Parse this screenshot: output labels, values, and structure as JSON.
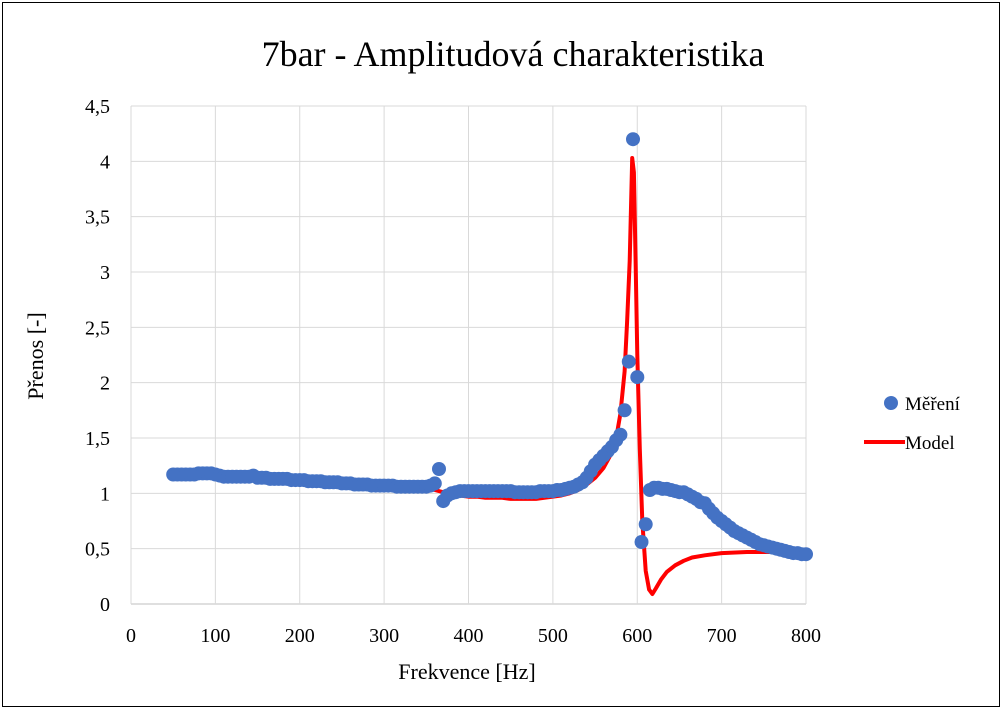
{
  "chart_data": {
    "type": "scatter",
    "title": "7bar - Amplitudová charakteristika",
    "xlabel": "Frekvence [Hz]",
    "ylabel": "Přenos [-]",
    "xlim": [
      0,
      800
    ],
    "ylim": [
      0,
      4.5
    ],
    "x_ticks": [
      0,
      100,
      200,
      300,
      400,
      500,
      600,
      700,
      800
    ],
    "x_tick_labels": [
      "0",
      "100",
      "200",
      "300",
      "400",
      "500",
      "600",
      "700",
      "800"
    ],
    "y_ticks": [
      0,
      0.5,
      1,
      1.5,
      2,
      2.5,
      3,
      3.5,
      4,
      4.5
    ],
    "y_tick_labels": [
      "0",
      "0,5",
      "1",
      "1,5",
      "2",
      "2,5",
      "3",
      "3,5",
      "4",
      "4,5"
    ],
    "grid": true,
    "legend_position": "right",
    "series": [
      {
        "name": "Měření",
        "kind": "scatter",
        "color": "#4472C4",
        "points": [
          [
            50,
            1.17
          ],
          [
            55,
            1.17
          ],
          [
            60,
            1.17
          ],
          [
            65,
            1.17
          ],
          [
            70,
            1.17
          ],
          [
            75,
            1.17
          ],
          [
            80,
            1.18
          ],
          [
            85,
            1.18
          ],
          [
            90,
            1.18
          ],
          [
            95,
            1.18
          ],
          [
            100,
            1.17
          ],
          [
            105,
            1.16
          ],
          [
            110,
            1.15
          ],
          [
            115,
            1.15
          ],
          [
            120,
            1.15
          ],
          [
            125,
            1.15
          ],
          [
            130,
            1.15
          ],
          [
            135,
            1.15
          ],
          [
            140,
            1.15
          ],
          [
            145,
            1.16
          ],
          [
            150,
            1.14
          ],
          [
            155,
            1.14
          ],
          [
            160,
            1.14
          ],
          [
            165,
            1.13
          ],
          [
            170,
            1.13
          ],
          [
            175,
            1.13
          ],
          [
            180,
            1.13
          ],
          [
            185,
            1.13
          ],
          [
            190,
            1.12
          ],
          [
            195,
            1.12
          ],
          [
            200,
            1.12
          ],
          [
            205,
            1.12
          ],
          [
            210,
            1.11
          ],
          [
            215,
            1.11
          ],
          [
            220,
            1.11
          ],
          [
            225,
            1.11
          ],
          [
            230,
            1.1
          ],
          [
            235,
            1.1
          ],
          [
            240,
            1.1
          ],
          [
            245,
            1.1
          ],
          [
            250,
            1.09
          ],
          [
            255,
            1.09
          ],
          [
            260,
            1.09
          ],
          [
            265,
            1.08
          ],
          [
            270,
            1.08
          ],
          [
            275,
            1.08
          ],
          [
            280,
            1.08
          ],
          [
            285,
            1.07
          ],
          [
            290,
            1.07
          ],
          [
            295,
            1.07
          ],
          [
            300,
            1.07
          ],
          [
            305,
            1.07
          ],
          [
            310,
            1.07
          ],
          [
            315,
            1.06
          ],
          [
            320,
            1.06
          ],
          [
            325,
            1.06
          ],
          [
            330,
            1.06
          ],
          [
            335,
            1.06
          ],
          [
            340,
            1.06
          ],
          [
            345,
            1.06
          ],
          [
            350,
            1.06
          ],
          [
            355,
            1.07
          ],
          [
            360,
            1.09
          ],
          [
            365,
            1.22
          ],
          [
            370,
            0.93
          ],
          [
            375,
            0.98
          ],
          [
            380,
            1.0
          ],
          [
            385,
            1.01
          ],
          [
            390,
            1.02
          ],
          [
            395,
            1.02
          ],
          [
            400,
            1.02
          ],
          [
            405,
            1.02
          ],
          [
            410,
            1.02
          ],
          [
            415,
            1.02
          ],
          [
            420,
            1.02
          ],
          [
            425,
            1.02
          ],
          [
            430,
            1.02
          ],
          [
            435,
            1.02
          ],
          [
            440,
            1.02
          ],
          [
            445,
            1.02
          ],
          [
            450,
            1.02
          ],
          [
            455,
            1.01
          ],
          [
            460,
            1.01
          ],
          [
            465,
            1.01
          ],
          [
            470,
            1.01
          ],
          [
            475,
            1.01
          ],
          [
            480,
            1.01
          ],
          [
            485,
            1.02
          ],
          [
            490,
            1.02
          ],
          [
            495,
            1.02
          ],
          [
            500,
            1.02
          ],
          [
            505,
            1.03
          ],
          [
            510,
            1.03
          ],
          [
            515,
            1.04
          ],
          [
            520,
            1.05
          ],
          [
            525,
            1.06
          ],
          [
            530,
            1.08
          ],
          [
            535,
            1.1
          ],
          [
            540,
            1.14
          ],
          [
            545,
            1.2
          ],
          [
            550,
            1.26
          ],
          [
            555,
            1.3
          ],
          [
            560,
            1.34
          ],
          [
            565,
            1.38
          ],
          [
            570,
            1.42
          ],
          [
            575,
            1.48
          ],
          [
            580,
            1.53
          ],
          [
            585,
            1.75
          ],
          [
            590,
            2.19
          ],
          [
            595,
            4.2
          ],
          [
            600,
            2.05
          ],
          [
            605,
            0.56
          ],
          [
            610,
            0.72
          ],
          [
            615,
            1.03
          ],
          [
            620,
            1.05
          ],
          [
            625,
            1.05
          ],
          [
            630,
            1.04
          ],
          [
            635,
            1.04
          ],
          [
            640,
            1.03
          ],
          [
            645,
            1.02
          ],
          [
            650,
            1.01
          ],
          [
            655,
            1.01
          ],
          [
            660,
            0.99
          ],
          [
            665,
            0.97
          ],
          [
            670,
            0.95
          ],
          [
            675,
            0.92
          ],
          [
            680,
            0.91
          ],
          [
            685,
            0.86
          ],
          [
            690,
            0.82
          ],
          [
            695,
            0.78
          ],
          [
            700,
            0.75
          ],
          [
            705,
            0.72
          ],
          [
            710,
            0.69
          ],
          [
            715,
            0.66
          ],
          [
            720,
            0.64
          ],
          [
            725,
            0.62
          ],
          [
            730,
            0.6
          ],
          [
            735,
            0.58
          ],
          [
            740,
            0.56
          ],
          [
            745,
            0.54
          ],
          [
            750,
            0.53
          ],
          [
            755,
            0.52
          ],
          [
            760,
            0.51
          ],
          [
            765,
            0.5
          ],
          [
            770,
            0.49
          ],
          [
            775,
            0.48
          ],
          [
            780,
            0.47
          ],
          [
            785,
            0.46
          ],
          [
            790,
            0.46
          ],
          [
            795,
            0.45
          ],
          [
            800,
            0.45
          ]
        ]
      },
      {
        "name": "Model",
        "kind": "line",
        "color": "#FF0000",
        "points": [
          [
            350,
            1.05
          ],
          [
            360,
            1.03
          ],
          [
            370,
            1.01
          ],
          [
            380,
            0.99
          ],
          [
            390,
            0.98
          ],
          [
            400,
            0.97
          ],
          [
            410,
            0.97
          ],
          [
            420,
            0.96
          ],
          [
            430,
            0.96
          ],
          [
            440,
            0.96
          ],
          [
            450,
            0.95
          ],
          [
            460,
            0.95
          ],
          [
            470,
            0.95
          ],
          [
            480,
            0.95
          ],
          [
            490,
            0.96
          ],
          [
            500,
            0.97
          ],
          [
            510,
            0.98
          ],
          [
            520,
            1.0
          ],
          [
            530,
            1.03
          ],
          [
            540,
            1.08
          ],
          [
            550,
            1.14
          ],
          [
            560,
            1.23
          ],
          [
            570,
            1.37
          ],
          [
            575,
            1.5
          ],
          [
            580,
            1.72
          ],
          [
            585,
            2.1
          ],
          [
            588,
            2.55
          ],
          [
            591,
            3.1
          ],
          [
            594,
            4.03
          ],
          [
            596,
            3.9
          ],
          [
            598,
            3.1
          ],
          [
            600,
            2.25
          ],
          [
            603,
            1.4
          ],
          [
            606,
            0.75
          ],
          [
            610,
            0.3
          ],
          [
            614,
            0.13
          ],
          [
            618,
            0.09
          ],
          [
            622,
            0.14
          ],
          [
            628,
            0.22
          ],
          [
            635,
            0.29
          ],
          [
            645,
            0.35
          ],
          [
            655,
            0.39
          ],
          [
            665,
            0.42
          ],
          [
            680,
            0.44
          ],
          [
            700,
            0.46
          ],
          [
            730,
            0.47
          ],
          [
            760,
            0.47
          ],
          [
            790,
            0.47
          ]
        ]
      }
    ]
  }
}
